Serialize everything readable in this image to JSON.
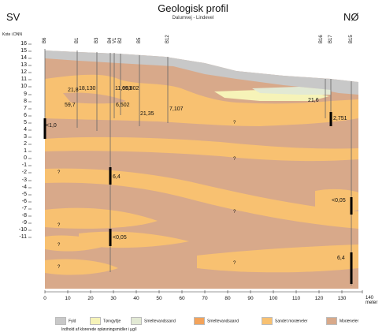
{
  "header": {
    "title": "Geologisk profil",
    "subtitle": "Dalumvej - Lindevel",
    "left_direction": "SV",
    "right_direction": "NØ"
  },
  "y_axis": {
    "label": "Kote i DNN",
    "ticks": [
      "16",
      "15",
      "14",
      "13",
      "12",
      "11",
      "10",
      "9",
      "8",
      "7",
      "6",
      "5",
      "4",
      "3",
      "2",
      "1",
      "0",
      "-1",
      "-2",
      "-3",
      "-4",
      "-5",
      "-6",
      "-7",
      "-8",
      "-9",
      "-10",
      "-11"
    ]
  },
  "x_axis": {
    "ticks": [
      "0",
      "10",
      "20",
      "30",
      "40",
      "50",
      "60",
      "70",
      "80",
      "90",
      "100",
      "110",
      "120",
      "130"
    ],
    "last_label": "140 meter"
  },
  "wells": [
    "B6",
    "B1",
    "B3",
    "B4",
    "V1",
    "B2",
    "B5",
    "B12",
    "B16",
    "B17",
    "B15"
  ],
  "measurements": [
    "<1,0",
    "21,8",
    "18,130",
    "11,063",
    "69,802",
    "59,7",
    "6,502",
    "21,35",
    "7,107",
    "21,6",
    "2,751",
    "6,4",
    "<0,05",
    "<0,05",
    "6,4"
  ],
  "unknown_marker": "?",
  "legend": {
    "items": [
      {
        "label": "Fyld",
        "color": "#c8c8c8"
      },
      {
        "label": "Tørvgyttje",
        "color": "#f6f3b8"
      },
      {
        "label": "Smeltevandssand",
        "color": "#e2e9d4"
      },
      {
        "label": "Smeltevandsaand",
        "color": "#f3a35b"
      },
      {
        "label": "Sandet moræneler",
        "color": "#f8c171"
      },
      {
        "label": "Moræneler",
        "color": "#d8a98a"
      }
    ],
    "caption": "Indhold af klorerede opløsningsmidler i µg/l"
  },
  "colors": {
    "moraeneler": "#d8a98a",
    "sandet_moraeneler": "#f8c171",
    "fyld": "#c8c8c8",
    "torvgyttje": "#f6f3b8",
    "smeltevand": "#e2e9d4",
    "filter": "#000000",
    "line": "#666666"
  }
}
